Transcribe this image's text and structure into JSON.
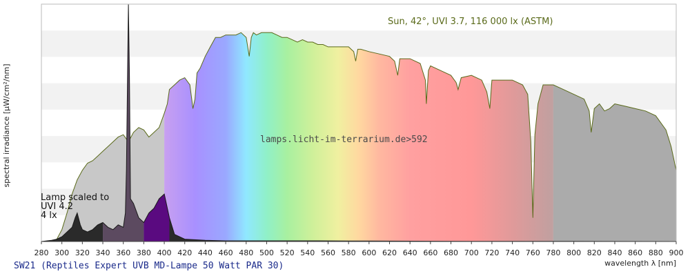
{
  "chart_data": {
    "type": "area",
    "title": "",
    "xlabel": "wavelength λ [nm]",
    "ylabel": "spectral irradiance [µW/cm²/nm]",
    "xlim": [
      280,
      900
    ],
    "ylim": [
      0,
      100
    ],
    "x_ticks": [
      280,
      300,
      320,
      340,
      360,
      380,
      400,
      420,
      440,
      460,
      480,
      500,
      520,
      540,
      560,
      580,
      600,
      620,
      640,
      660,
      680,
      700,
      720,
      740,
      760,
      780,
      800,
      820,
      840,
      860,
      880,
      900
    ],
    "grid": "horizontal bands",
    "watermark": "lamps.licht-im-terrarium.de>592",
    "caption": "SW21 (Reptiles Expert UVB MD-Lampe 50 Watt PAR 30)",
    "series": [
      {
        "name": "Sun, 42°, UVI 3.7, 116 000 lx (ASTM)",
        "x": [
          280,
          290,
          295,
          300,
          305,
          310,
          315,
          320,
          325,
          330,
          335,
          340,
          345,
          350,
          355,
          360,
          365,
          370,
          375,
          380,
          385,
          390,
          395,
          400,
          403,
          405,
          410,
          415,
          420,
          425,
          428,
          430,
          432,
          435,
          440,
          445,
          450,
          455,
          460,
          465,
          470,
          475,
          480,
          483,
          485,
          487,
          490,
          495,
          500,
          505,
          510,
          515,
          520,
          525,
          530,
          535,
          540,
          545,
          550,
          555,
          560,
          565,
          570,
          575,
          580,
          585,
          587,
          589,
          592,
          600,
          610,
          620,
          625,
          628,
          630,
          640,
          650,
          655,
          656,
          658,
          660,
          670,
          680,
          685,
          687,
          690,
          700,
          710,
          715,
          718,
          720,
          730,
          740,
          750,
          755,
          758,
          760,
          762,
          765,
          770,
          780,
          790,
          800,
          810,
          815,
          817,
          820,
          825,
          830,
          835,
          840,
          850,
          860,
          870,
          880,
          890,
          895,
          900
        ],
        "values": [
          0,
          0,
          1,
          5,
          12,
          20,
          26,
          30,
          33,
          34,
          36,
          38,
          40,
          42,
          44,
          45,
          42,
          46,
          48,
          47,
          44,
          46,
          48,
          54,
          58,
          64,
          66,
          68,
          69,
          66,
          56,
          60,
          71,
          73,
          78,
          82,
          86,
          86,
          87,
          87,
          87,
          88,
          86,
          78,
          86,
          88,
          87,
          88,
          88,
          88,
          87,
          86,
          86,
          85,
          84,
          85,
          84,
          84,
          83,
          83,
          82,
          82,
          82,
          82,
          82,
          80,
          76,
          81,
          81,
          80,
          79,
          78,
          76,
          70,
          77,
          77,
          75,
          68,
          58,
          72,
          74,
          72,
          70,
          67,
          64,
          69,
          70,
          68,
          63,
          56,
          68,
          68,
          68,
          66,
          62,
          42,
          10,
          45,
          58,
          66,
          66,
          64,
          62,
          60,
          55,
          46,
          56,
          58,
          55,
          56,
          58,
          57,
          56,
          55,
          53,
          47,
          40,
          30
        ],
        "color": "#5a6a1a"
      },
      {
        "name": "Lamp scaled to UVI 4.2 4 lx",
        "x": [
          280,
          290,
          295,
          300,
          305,
          310,
          313,
          315,
          318,
          320,
          325,
          330,
          335,
          340,
          345,
          350,
          355,
          360,
          362,
          363,
          365,
          366,
          367,
          370,
          375,
          380,
          385,
          390,
          395,
          400,
          405,
          410,
          420,
          440,
          460,
          500,
          550,
          600,
          700,
          800,
          900
        ],
        "values": [
          0,
          0.5,
          1,
          2,
          4,
          6,
          10,
          12,
          7,
          5,
          4,
          5,
          7,
          8,
          6,
          5,
          7,
          6,
          12,
          30,
          100,
          70,
          18,
          16,
          10,
          8,
          12,
          14,
          18,
          20,
          10,
          3,
          1,
          0.5,
          0.3,
          0.3,
          0.3,
          0.2,
          0.1,
          0.1,
          0
        ],
        "color": "#1a1a1a"
      }
    ]
  },
  "labels": {
    "sun": "Sun, 42°, UVI 3.7, 116 000 lx (ASTM)",
    "lamp_line1": "Lamp scaled to",
    "lamp_line2": "UVI 4.2",
    "lamp_line3": "4 lx"
  },
  "colors": {
    "frame": "#bbbbbb",
    "grid_band": "#f2f2f2",
    "uv_dark": "#3a3a3a",
    "uv_light": "#c8c8c8",
    "lamp_uvb": "#2a2a2a",
    "lamp_uva": "#5c4a60",
    "lamp_violet": "#5a0a80",
    "ir_gray": "#ababab"
  }
}
